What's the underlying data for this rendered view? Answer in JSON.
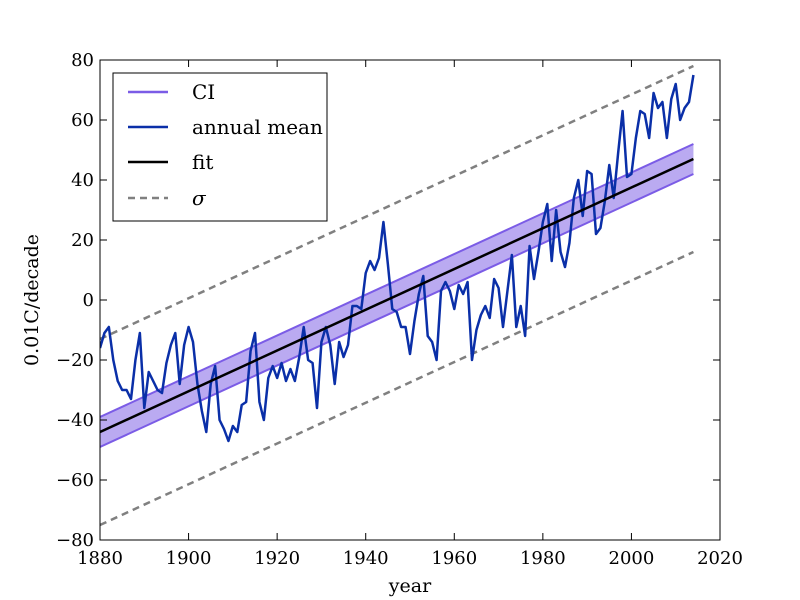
{
  "chart_data": {
    "type": "line",
    "xlabel": "year",
    "ylabel": "0.01C/decade",
    "xlim": [
      1880,
      2020
    ],
    "ylim": [
      -80,
      80
    ],
    "xticks": [
      1880,
      1900,
      1920,
      1940,
      1960,
      1980,
      2000,
      2020
    ],
    "yticks": [
      -80,
      -60,
      -40,
      -20,
      0,
      20,
      40,
      60,
      80
    ],
    "xtick_labels": [
      "1880",
      "1900",
      "1920",
      "1940",
      "1960",
      "1980",
      "2000",
      "2020"
    ],
    "ytick_labels": [
      "−80",
      "−60",
      "−40",
      "−20",
      "0",
      "20",
      "40",
      "60",
      "80"
    ],
    "grid": false,
    "legend_position": "top-left",
    "legend": [
      {
        "label": "CI",
        "style": "ci"
      },
      {
        "label": "annual mean",
        "style": "series"
      },
      {
        "label": "fit",
        "style": "fit"
      },
      {
        "label": "σ",
        "style": "sigma"
      }
    ],
    "colors": {
      "ci_fill": "#b3a1f0",
      "ci_edge": "#7b5ce6",
      "series": "#0a2fa8",
      "fit": "#000000",
      "sigma": "#808080"
    },
    "fit": {
      "x": [
        1880,
        2014
      ],
      "y": [
        -44,
        47
      ]
    },
    "ci": {
      "x": [
        1880,
        2014
      ],
      "upper": [
        -39,
        52
      ],
      "lower": [
        -49,
        42
      ]
    },
    "sigma": {
      "x": [
        1880,
        2014
      ],
      "upper": [
        -13,
        78
      ],
      "lower": [
        -75,
        16
      ]
    },
    "series": [
      {
        "name": "annual mean",
        "x": [
          1880,
          1881,
          1882,
          1883,
          1884,
          1885,
          1886,
          1887,
          1888,
          1889,
          1890,
          1891,
          1892,
          1893,
          1894,
          1895,
          1896,
          1897,
          1898,
          1899,
          1900,
          1901,
          1902,
          1903,
          1904,
          1905,
          1906,
          1907,
          1908,
          1909,
          1910,
          1911,
          1912,
          1913,
          1914,
          1915,
          1916,
          1917,
          1918,
          1919,
          1920,
          1921,
          1922,
          1923,
          1924,
          1925,
          1926,
          1927,
          1928,
          1929,
          1930,
          1931,
          1932,
          1933,
          1934,
          1935,
          1936,
          1937,
          1938,
          1939,
          1940,
          1941,
          1942,
          1943,
          1944,
          1945,
          1946,
          1947,
          1948,
          1949,
          1950,
          1951,
          1952,
          1953,
          1954,
          1955,
          1956,
          1957,
          1958,
          1959,
          1960,
          1961,
          1962,
          1963,
          1964,
          1965,
          1966,
          1967,
          1968,
          1969,
          1970,
          1971,
          1972,
          1973,
          1974,
          1975,
          1976,
          1977,
          1978,
          1979,
          1980,
          1981,
          1982,
          1983,
          1984,
          1985,
          1986,
          1987,
          1988,
          1989,
          1990,
          1991,
          1992,
          1993,
          1994,
          1995,
          1996,
          1997,
          1998,
          1999,
          2000,
          2001,
          2002,
          2003,
          2004,
          2005,
          2006,
          2007,
          2008,
          2009,
          2010,
          2011,
          2012,
          2013,
          2014
        ],
        "values": [
          -16,
          -11,
          -9,
          -20,
          -27,
          -30,
          -30,
          -33,
          -20,
          -11,
          -36,
          -24,
          -27,
          -30,
          -31,
          -21,
          -15,
          -11,
          -28,
          -15,
          -9,
          -14,
          -28,
          -37,
          -44,
          -28,
          -22,
          -40,
          -43,
          -47,
          -42,
          -44,
          -35,
          -34,
          -17,
          -11,
          -34,
          -40,
          -26,
          -22,
          -26,
          -21,
          -27,
          -23,
          -27,
          -19,
          -9,
          -20,
          -21,
          -36,
          -14,
          -9,
          -15,
          -28,
          -14,
          -19,
          -15,
          -2,
          -2,
          -3,
          9,
          13,
          10,
          14,
          26,
          12,
          -3,
          -4,
          -9,
          -9,
          -18,
          -7,
          2,
          8,
          -12,
          -14,
          -20,
          3,
          6,
          3,
          -3,
          5,
          2,
          6,
          -20,
          -10,
          -5,
          -2,
          -6,
          7,
          4,
          -9,
          3,
          15,
          -9,
          -2,
          -12,
          18,
          7,
          16,
          26,
          32,
          13,
          30,
          16,
          11,
          19,
          34,
          40,
          28,
          43,
          42,
          22,
          24,
          33,
          45,
          34,
          49,
          63,
          41,
          42,
          54,
          63,
          62,
          54,
          69,
          64,
          66,
          54,
          67,
          72,
          60,
          64,
          66,
          75
        ]
      }
    ]
  }
}
